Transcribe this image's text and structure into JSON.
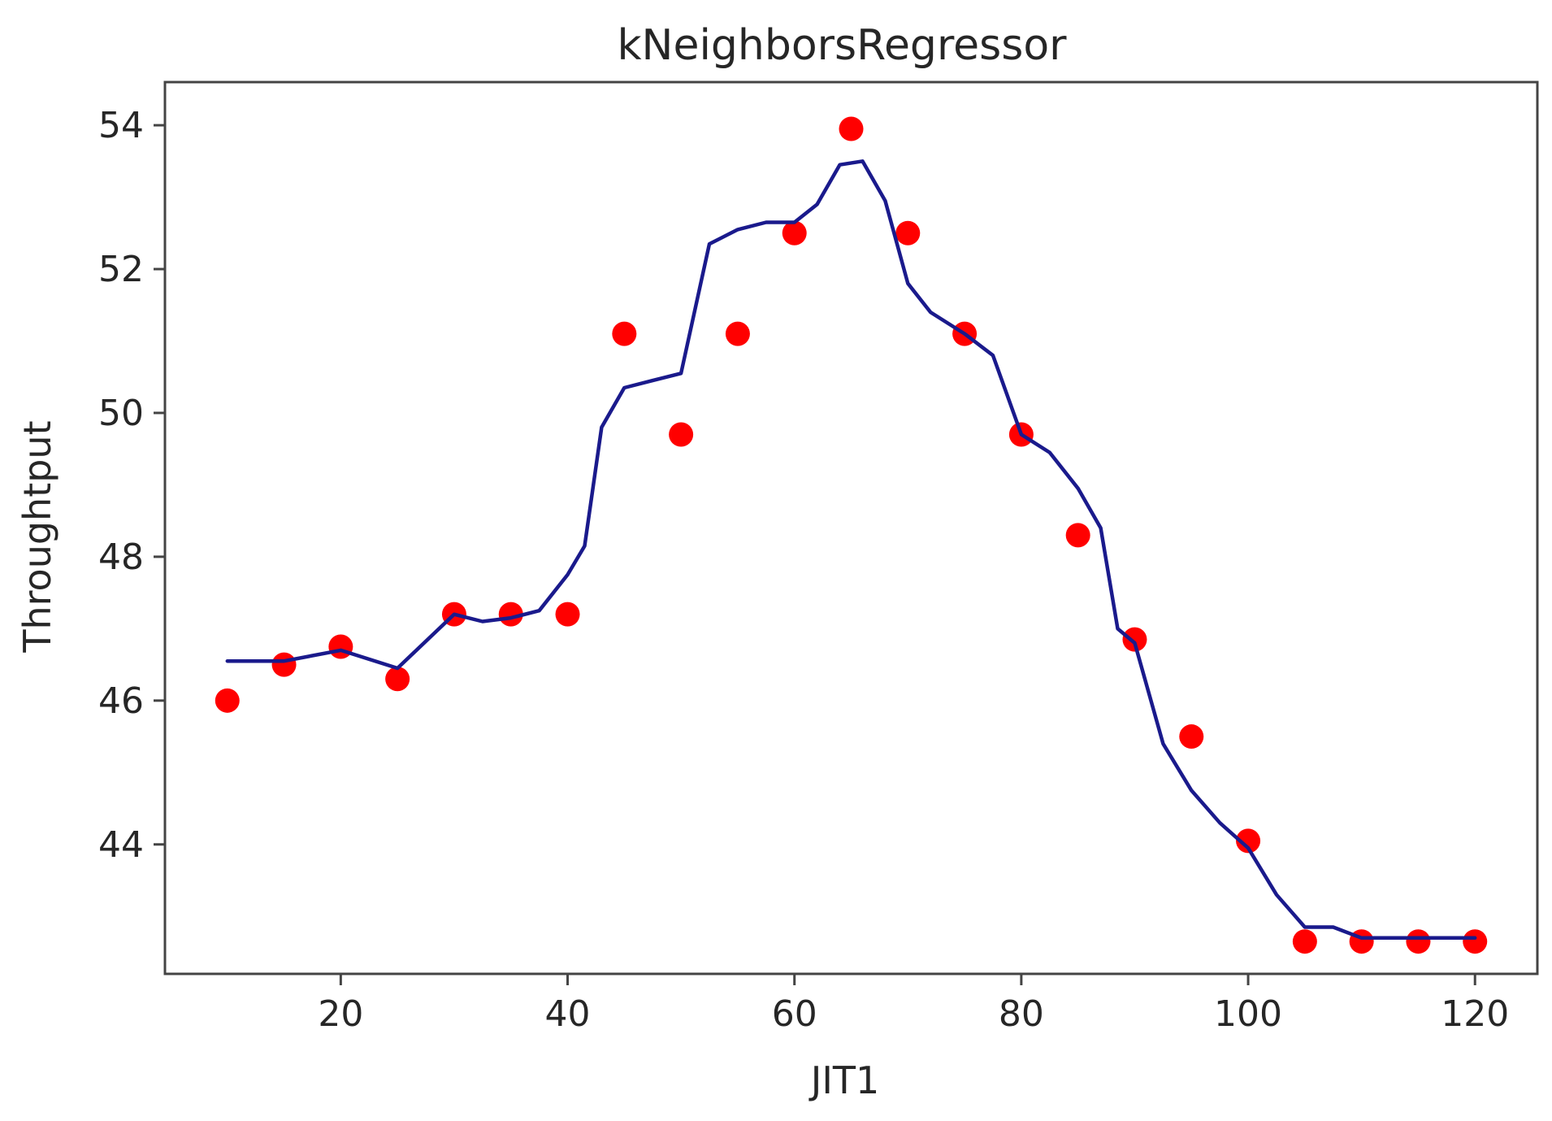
{
  "chart_data": {
    "type": "scatter",
    "title": "kNeighborsRegressor",
    "xlabel": "JIT1",
    "ylabel": "Throughtput",
    "xlim": [
      4.5,
      125.5
    ],
    "ylim": [
      42.2,
      54.6
    ],
    "xticks": [
      20,
      40,
      60,
      80,
      100,
      120
    ],
    "yticks": [
      44,
      46,
      48,
      50,
      52,
      54
    ],
    "grid": false,
    "legend": "none",
    "colors": {
      "points": "#ff0000",
      "line": "#1a1a8c",
      "axes": "#444444",
      "text": "#262626"
    },
    "series": [
      {
        "kind": "scatter",
        "x": [
          10,
          15,
          20,
          25,
          30,
          35,
          40,
          45,
          50,
          55,
          60,
          65,
          70,
          75,
          80,
          85,
          90,
          95,
          100,
          105,
          110,
          115,
          120
        ],
        "y": [
          46.0,
          46.5,
          46.75,
          46.3,
          47.2,
          47.2,
          47.2,
          51.1,
          49.7,
          51.1,
          52.5,
          53.95,
          52.5,
          51.1,
          49.7,
          48.3,
          46.85,
          45.5,
          44.05,
          42.65,
          42.65,
          42.65,
          42.65
        ]
      },
      {
        "kind": "line",
        "x": [
          10,
          15,
          20,
          25,
          30,
          32.5,
          35,
          37.5,
          40,
          41.5,
          43,
          45,
          47.5,
          50,
          52.5,
          55,
          57.5,
          60,
          62,
          64,
          66,
          68,
          70,
          72,
          75,
          77.5,
          80,
          82.5,
          85,
          87,
          88.5,
          90,
          92.5,
          95,
          97.5,
          100,
          102.5,
          105,
          107.5,
          110,
          115,
          120
        ],
        "y": [
          46.55,
          46.55,
          46.7,
          46.45,
          47.2,
          47.1,
          47.15,
          47.25,
          47.75,
          48.15,
          49.8,
          50.35,
          50.45,
          50.55,
          52.35,
          52.55,
          52.65,
          52.65,
          52.9,
          53.45,
          53.5,
          52.95,
          51.8,
          51.4,
          51.1,
          50.8,
          49.7,
          49.45,
          48.95,
          48.4,
          47.0,
          46.8,
          45.4,
          44.75,
          44.3,
          43.95,
          43.3,
          42.85,
          42.85,
          42.7,
          42.7,
          42.7
        ]
      }
    ]
  }
}
